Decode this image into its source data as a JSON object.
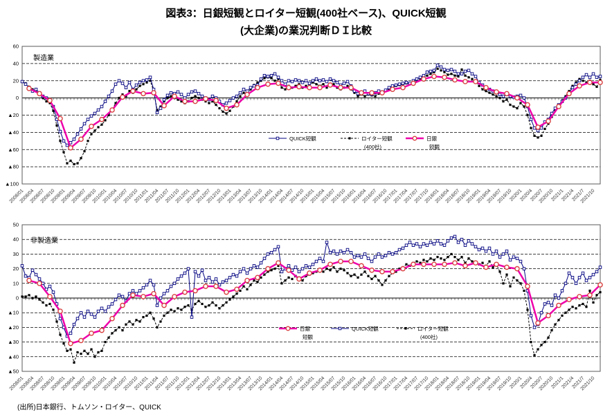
{
  "title_line1": "図表3：日銀短観とロイター短観(400社ベース)、QUICK短観",
  "title_line2": "(大企業)の業況判断ＤＩ比較",
  "source": "(出所)日本銀行、トムソン・ロイター、QUICK",
  "colors": {
    "quick": "#000080",
    "reuters": "#000000",
    "boj_line": "#EE00AA",
    "boj_marker": "#D94040"
  },
  "x_monthly_range": [
    "2008/01",
    "2021/12"
  ],
  "x_labels": [
    "2008/01",
    "2008/04",
    "2008/07",
    "2008/10",
    "2009/01",
    "2009/04",
    "2009/07",
    "2009/10",
    "2010/01",
    "2010/04",
    "2010/07",
    "2010/10",
    "2011/01",
    "2011/04",
    "2011/07",
    "2011/10",
    "2012/01",
    "2012/04",
    "2012/07",
    "2012/10",
    "2013/01",
    "2013/04",
    "2013/07",
    "2013/10",
    "2014/01",
    "2014/04",
    "2014/07",
    "2014/10",
    "2015/01",
    "2015/04",
    "2015/07",
    "2015/10",
    "2016/01",
    "2016/04",
    "2016/07",
    "2016/10",
    "2017/01",
    "2017/04",
    "2017/07",
    "2017/10",
    "2018/01",
    "2018/04",
    "2018/07",
    "2018/10",
    "2019/01",
    "2019/04",
    "2019/07",
    "2019/10",
    "2020/1",
    "2020/4",
    "2020/7",
    "2020/10",
    "2021/1",
    "2021/4",
    "2021/7",
    "2021/10"
  ],
  "chart_data": [
    {
      "type": "line",
      "panel_label": "製造業",
      "ylim": [
        -100,
        60
      ],
      "ystep": 20,
      "y_tick_labels": [
        "60",
        "40",
        "20",
        "0",
        "▲20",
        "▲40",
        "▲60",
        "▲80",
        "▲100"
      ],
      "legend": [
        {
          "series": "quick",
          "lines": [
            "QUICK短観"
          ]
        },
        {
          "series": "reuters",
          "lines": [
            "ロイター短観",
            "(400社)"
          ]
        },
        {
          "series": "boj",
          "lines": [
            "日銀",
            "短観"
          ]
        }
      ],
      "series": [
        {
          "id": "quick",
          "name": "QUICK短観",
          "color": "#000080",
          "style": "solid",
          "marker": "open-square",
          "freq": "monthly",
          "values": [
            19,
            16,
            12,
            8,
            10,
            6,
            2,
            0,
            -2,
            -10,
            -25,
            -39,
            -50,
            -55,
            -52,
            -48,
            -42,
            -36,
            -30,
            -25,
            -21,
            -18,
            -14,
            -10,
            -4,
            2,
            8,
            16,
            20,
            17,
            12,
            18,
            10,
            15,
            18,
            20,
            21,
            24,
            10,
            -17,
            -12,
            -2,
            3,
            6,
            5,
            7,
            4,
            0,
            4,
            7,
            8,
            5,
            2,
            0,
            -2,
            2,
            0,
            -4,
            -8,
            -6,
            -3,
            0,
            2,
            6,
            10,
            8,
            12,
            14,
            15,
            22,
            26,
            25,
            26,
            28,
            24,
            20,
            16,
            20,
            19,
            21,
            20,
            18,
            20,
            17,
            20,
            22,
            20,
            21,
            19,
            22,
            20,
            18,
            15,
            17,
            19,
            14,
            8,
            5,
            6,
            8,
            5,
            4,
            6,
            8,
            7,
            9,
            12,
            14,
            15,
            16,
            17,
            18,
            17,
            20,
            22,
            24,
            26,
            30,
            31,
            32,
            38,
            36,
            33,
            32,
            33,
            31,
            28,
            28,
            31,
            32,
            28,
            25,
            18,
            15,
            12,
            10,
            8,
            6,
            4,
            2,
            4,
            2,
            1,
            2,
            3,
            0,
            -10,
            -25,
            -35,
            -38,
            -35,
            -28,
            -25,
            -18,
            -12,
            -8,
            -4,
            0,
            6,
            12,
            16,
            20,
            24,
            27,
            24,
            28,
            24,
            25
          ]
        },
        {
          "id": "reuters",
          "name": "ロイター短観(400社)",
          "color": "#000000",
          "style": "dashed",
          "marker": "filled-square",
          "freq": "monthly",
          "values": [
            19,
            17,
            13,
            10,
            8,
            4,
            0,
            -4,
            -6,
            -15,
            -32,
            -50,
            -63,
            -76,
            -73,
            -77,
            -76,
            -70,
            -62,
            -50,
            -42,
            -38,
            -34,
            -31,
            -26,
            -20,
            -14,
            -6,
            0,
            4,
            2,
            8,
            6,
            10,
            14,
            16,
            18,
            20,
            8,
            -14,
            -10,
            -4,
            0,
            2,
            0,
            -2,
            -4,
            -6,
            -4,
            0,
            2,
            0,
            -2,
            -4,
            -6,
            -4,
            -8,
            -12,
            -16,
            -18,
            -15,
            -10,
            -4,
            2,
            6,
            4,
            10,
            15,
            18,
            20,
            23,
            24,
            23,
            20,
            22,
            12,
            10,
            14,
            12,
            14,
            16,
            12,
            14,
            16,
            18,
            16,
            14,
            16,
            12,
            14,
            16,
            12,
            10,
            12,
            14,
            10,
            6,
            2,
            4,
            2,
            4,
            3,
            2,
            5,
            7,
            8,
            10,
            12,
            14,
            15,
            16,
            17,
            16,
            18,
            20,
            22,
            25,
            26,
            28,
            30,
            34,
            32,
            30,
            27,
            28,
            26,
            25,
            33,
            26,
            24,
            22,
            20,
            14,
            10,
            8,
            6,
            4,
            2,
            0,
            -4,
            -2,
            -8,
            -10,
            -12,
            -6,
            -10,
            -20,
            -35,
            -44,
            -46,
            -44,
            -36,
            -30,
            -22,
            -14,
            -9,
            -3,
            2,
            8,
            14,
            18,
            22,
            20,
            18,
            20,
            16,
            13,
            21
          ]
        },
        {
          "id": "boj",
          "name": "日銀短観",
          "color": "#EE00AA",
          "marker_color": "#D94040",
          "style": "solid-thick",
          "marker": "open-circle",
          "freq": "quarterly",
          "values": [
            11,
            5,
            -3,
            -24,
            -58,
            -48,
            -33,
            -25,
            -14,
            1,
            8,
            5,
            6,
            -9,
            2,
            -4,
            -4,
            -1,
            -3,
            -12,
            -8,
            4,
            12,
            16,
            17,
            12,
            13,
            12,
            12,
            15,
            12,
            12,
            6,
            6,
            6,
            10,
            12,
            17,
            22,
            25,
            24,
            21,
            19,
            19,
            12,
            7,
            5,
            0,
            -8,
            -34,
            -27,
            -10,
            5,
            14,
            18,
            18
          ]
        }
      ]
    },
    {
      "type": "line",
      "panel_label": "非製造業",
      "ylim": [
        -50,
        50
      ],
      "ystep": 10,
      "y_tick_labels": [
        "50",
        "40",
        "30",
        "20",
        "10",
        "0",
        "▲10",
        "▲20",
        "▲30",
        "▲40",
        "▲50"
      ],
      "legend": [
        {
          "series": "boj",
          "lines": [
            "日銀",
            "短観"
          ]
        },
        {
          "series": "quick",
          "lines": [
            "QUICK短観"
          ]
        },
        {
          "series": "reuters",
          "lines": [
            "ロイター短観",
            "(400社)"
          ]
        }
      ],
      "series": [
        {
          "id": "quick",
          "name": "QUICK短観",
          "color": "#000080",
          "style": "solid",
          "marker": "open-square",
          "freq": "monthly",
          "values": [
            22,
            15,
            14,
            19,
            16,
            13,
            10,
            6,
            8,
            4,
            -4,
            -14,
            -20,
            -26,
            -24,
            -18,
            -14,
            -10,
            -13,
            -9,
            -11,
            -13,
            -9,
            -7,
            -9,
            -6,
            -4,
            -1,
            2,
            1,
            -2,
            3,
            5,
            3,
            5,
            7,
            9,
            12,
            9,
            -5,
            0,
            3,
            5,
            8,
            10,
            13,
            15,
            17,
            20,
            -13,
            18,
            15,
            19,
            12,
            14,
            11,
            13,
            9,
            11,
            12,
            14,
            16,
            15,
            18,
            20,
            17,
            20,
            22,
            21,
            24,
            27,
            30,
            31,
            33,
            35,
            18,
            20,
            22,
            19,
            21,
            18,
            20,
            22,
            21,
            23,
            25,
            27,
            25,
            38,
            31,
            32,
            30,
            32,
            31,
            33,
            31,
            28,
            29,
            28,
            30,
            27,
            25,
            28,
            30,
            28,
            29,
            31,
            30,
            31,
            33,
            34,
            36,
            38,
            36,
            37,
            35,
            37,
            36,
            38,
            37,
            39,
            37,
            36,
            39,
            41,
            42,
            38,
            40,
            36,
            39,
            37,
            35,
            33,
            34,
            32,
            34,
            30,
            32,
            28,
            30,
            32,
            26,
            28,
            27,
            25,
            20,
            5,
            -12,
            -20,
            -18,
            -10,
            -4,
            -3,
            -5,
            2,
            0,
            5,
            10,
            17,
            14,
            10,
            14,
            17,
            12,
            14,
            16,
            18,
            21
          ]
        },
        {
          "id": "reuters",
          "name": "ロイター短観(400社)",
          "color": "#000000",
          "style": "dashed",
          "marker": "filled-square",
          "freq": "monthly",
          "values": [
            1,
            1,
            2,
            0,
            1,
            -1,
            -3,
            -5,
            -4,
            -8,
            -16,
            -25,
            -31,
            -36,
            -35,
            -44,
            -37,
            -38,
            -36,
            -38,
            -35,
            -40,
            -37,
            -36,
            -30,
            -27,
            -24,
            -22,
            -20,
            -22,
            -18,
            -16,
            -18,
            -15,
            -16,
            -13,
            -12,
            -10,
            -14,
            -20,
            -16,
            -12,
            -10,
            -8,
            -9,
            -7,
            -8,
            -6,
            -5,
            -8,
            -4,
            -2,
            -4,
            -6,
            -5,
            -3,
            -5,
            -7,
            -5,
            -3,
            -1,
            1,
            3,
            5,
            8,
            6,
            9,
            12,
            11,
            14,
            16,
            18,
            19,
            20,
            22,
            10,
            12,
            14,
            13,
            15,
            14,
            12,
            15,
            16,
            17,
            18,
            20,
            18,
            20,
            19,
            21,
            18,
            20,
            19,
            17,
            15,
            16,
            14,
            16,
            18,
            15,
            13,
            15,
            12,
            9,
            12,
            15,
            17,
            18,
            20,
            21,
            23,
            22,
            24,
            25,
            24,
            26,
            25,
            27,
            26,
            28,
            27,
            26,
            28,
            30,
            28,
            26,
            28,
            24,
            27,
            25,
            24,
            23,
            24,
            22,
            25,
            21,
            23,
            18,
            10,
            16,
            8,
            14,
            12,
            10,
            5,
            -8,
            -30,
            -39,
            -35,
            -32,
            -30,
            -27,
            -22,
            -18,
            -15,
            -12,
            -10,
            -8,
            -6,
            -7,
            -5,
            -4,
            -6,
            5,
            -3,
            2,
            4
          ]
        },
        {
          "id": "boj",
          "name": "日銀短観",
          "color": "#EE00AA",
          "marker_color": "#D94040",
          "style": "solid-thick",
          "marker": "open-circle",
          "freq": "quarterly",
          "values": [
            12,
            10,
            1,
            -9,
            -31,
            -29,
            -24,
            -22,
            -14,
            -5,
            2,
            1,
            3,
            -5,
            1,
            4,
            5,
            8,
            8,
            4,
            6,
            12,
            14,
            20,
            24,
            19,
            13,
            17,
            19,
            23,
            25,
            25,
            22,
            19,
            18,
            18,
            20,
            23,
            23,
            23,
            23,
            24,
            22,
            24,
            21,
            23,
            21,
            20,
            8,
            -17,
            -12,
            -5,
            -1,
            1,
            2,
            9
          ]
        }
      ]
    }
  ]
}
